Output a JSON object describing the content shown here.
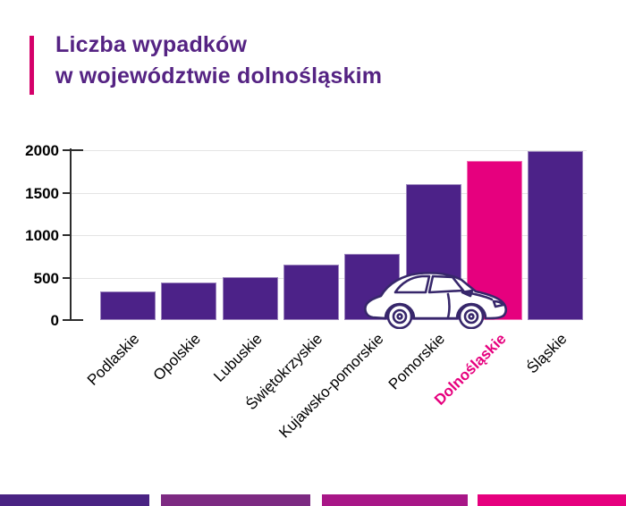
{
  "title": {
    "line1": "Liczba wypadków",
    "line2": "w województwie dolnośląskim",
    "color": "#552383",
    "accent_color": "#d4006a"
  },
  "chart_data": {
    "type": "bar",
    "title": "Liczba wypadków w województwie dolnośląskim",
    "categories": [
      "Podlaskie",
      "Opolskie",
      "Lubuskie",
      "Świętokrzyskie",
      "Kujawsko-pomorskie",
      "Pomorskie",
      "Dolnośląskie",
      "Śląskie"
    ],
    "values": [
      332,
      440,
      504,
      650,
      775,
      1600,
      1870,
      1990
    ],
    "highlight_category": "Dolnośląskie",
    "bar_color": "#4c2288",
    "highlight_color": "#e6007e",
    "highlight_label_color": "#e6007e",
    "xlabel": "",
    "ylabel": "",
    "ylim": [
      0,
      2000
    ],
    "yticks": [
      0,
      500,
      1000,
      1500,
      2000
    ],
    "grid": "horizontal",
    "legend": "none"
  },
  "decoration": {
    "car_icon": "white-car-side-view",
    "car_outline_color": "#37276b"
  },
  "footer": {
    "bars": [
      {
        "color": "#4a2383"
      },
      {
        "color": "#7d2a82"
      },
      {
        "color": "#a81687"
      },
      {
        "color": "#e6007e"
      }
    ]
  }
}
